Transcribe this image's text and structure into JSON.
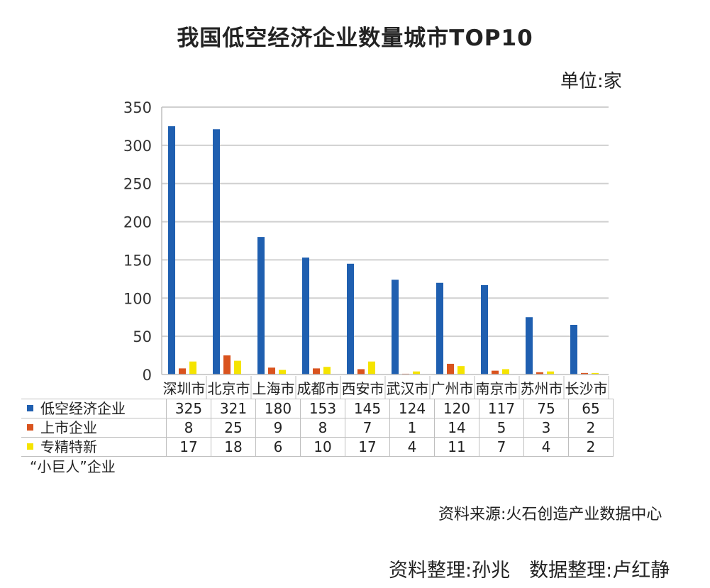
{
  "chart_data": {
    "type": "bar",
    "title": "我国低空经济企业数量城市TOP10",
    "unit": "单位:家",
    "categories": [
      "深圳市",
      "北京市",
      "上海市",
      "成都市",
      "西安市",
      "武汉市",
      "广州市",
      "南京市",
      "苏州市",
      "长沙市"
    ],
    "series": [
      {
        "name": "低空经济企业",
        "color": "#1f5fb0",
        "values": [
          325,
          321,
          180,
          153,
          145,
          124,
          120,
          117,
          75,
          65
        ]
      },
      {
        "name": "上市企业",
        "color": "#d9531e",
        "values": [
          8,
          25,
          9,
          8,
          7,
          1,
          14,
          5,
          3,
          2
        ]
      },
      {
        "name": "专精特新",
        "color": "#f5e400",
        "values": [
          17,
          18,
          6,
          10,
          17,
          4,
          11,
          7,
          4,
          2
        ]
      }
    ],
    "series_label_extra": "“小巨人”企业",
    "ylim": [
      0,
      350
    ],
    "yticks": [
      0,
      50,
      100,
      150,
      200,
      250,
      300,
      350
    ],
    "grid": true,
    "legend": "data-table"
  },
  "footer": {
    "source": "资料来源:火石创造产业数据中心",
    "credits": "资料整理:孙兆　数据整理:卢红静"
  }
}
